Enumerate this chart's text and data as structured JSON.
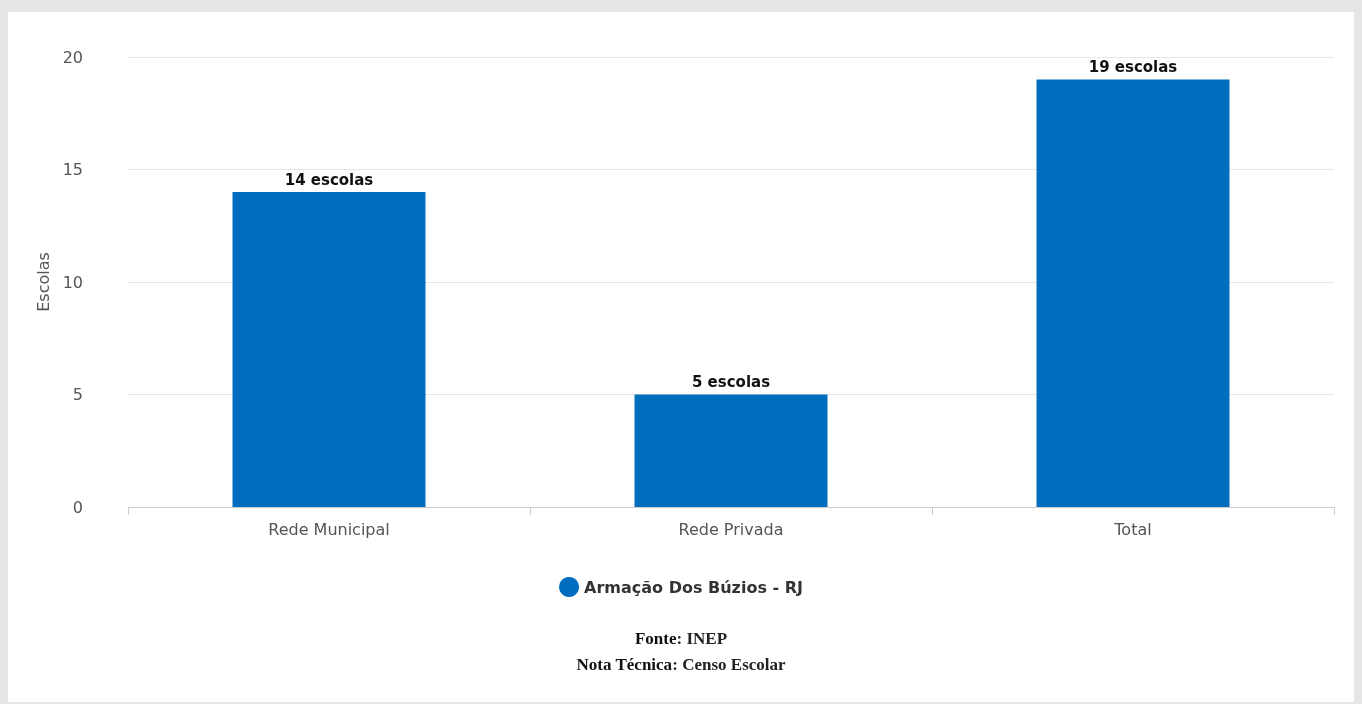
{
  "chart_data": {
    "type": "bar",
    "ylabel": "Escolas",
    "categories": [
      "Rede Municipal",
      "Rede Privada",
      "Total"
    ],
    "series": [
      {
        "name": "Armação Dos Búzios - RJ",
        "color": "#006dbf",
        "values": [
          14,
          5,
          19
        ],
        "value_labels": [
          "14 escolas",
          "5 escolas",
          "19 escolas"
        ]
      }
    ],
    "ylim": [
      0,
      20
    ],
    "yticks": [
      0,
      5,
      10,
      15,
      20
    ],
    "grid": "y",
    "legend": "bottom",
    "annotations": [
      "Fonte: INEP",
      "Nota Técnica: Censo Escolar"
    ]
  }
}
